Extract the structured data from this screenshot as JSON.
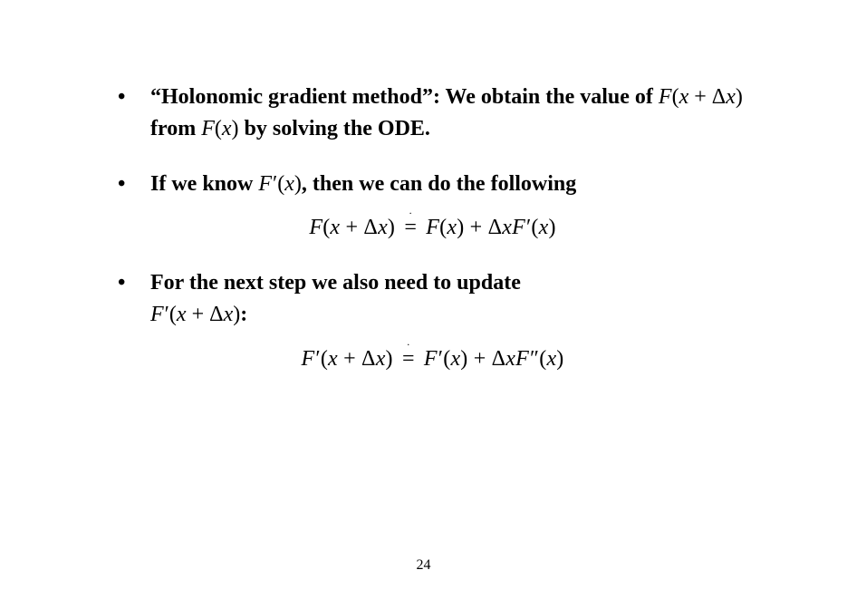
{
  "items": [
    {
      "lead": "“Holonomic gradient method”: We obtain the value of ",
      "expr1_a": "F",
      "expr1_b": "x",
      "expr1_c": "Δ",
      "expr1_d": "x",
      "mid1": " from ",
      "expr2_a": "F",
      "expr2_b": "x",
      "tail": " by solving the ODE."
    },
    {
      "lead": "If we know ",
      "expr_a": "F",
      "expr_b": "x",
      "tail": ", then we can do the following",
      "eq_lhs_F": "F",
      "eq_lhs_x": "x",
      "eq_lhs_D": "Δ",
      "eq_lhs_x2": "x",
      "eq_rhs_F1": "F",
      "eq_rhs_x1": "x",
      "eq_rhs_D": "Δ",
      "eq_rhs_x2": "x",
      "eq_rhs_F2": "F",
      "eq_rhs_x3": "x"
    },
    {
      "lead": "For the next step we also need to update ",
      "expr_a": "F",
      "expr_b": "x",
      "expr_c": "Δ",
      "expr_d": "x",
      "tail": ":",
      "eq_lhs_F": "F",
      "eq_lhs_x": "x",
      "eq_lhs_D": "Δ",
      "eq_lhs_x2": "x",
      "eq_rhs_F1": "F",
      "eq_rhs_x1": "x",
      "eq_rhs_D": "Δ",
      "eq_rhs_x2": "x",
      "eq_rhs_F2": "F",
      "eq_rhs_x3": "x"
    }
  ],
  "page_number": "24",
  "glyphs": {
    "plus": "+",
    "lparen": "(",
    "rparen": ")",
    "eq": "=",
    "prime": "′",
    "pprime": "″",
    "dot": "."
  }
}
